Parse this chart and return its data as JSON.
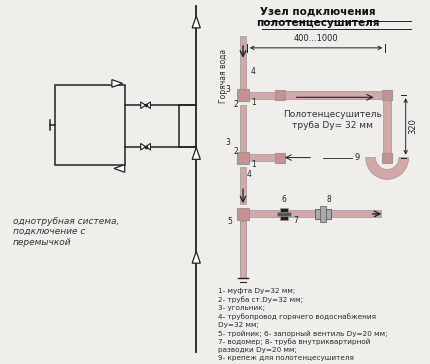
{
  "title": "Узел подключения\nполотенцесушителя",
  "left_label": "однотрубная система,\nподключение с\nперемычкой",
  "legend_lines": [
    "1- муфта Dy=32 мм;",
    "2- труба ст.Dy=32 мм;",
    "3- угольник;",
    "4- трубопровод горячего водоснабжения",
    "Dy=32 мм;",
    "5- тройник; 6- запорный вентиль Dy=20 мм;",
    "7- водомер; 8- труба внутриквартирной",
    "разводки Dy=20 мм;",
    "9- крепеж для полотенцесушителя"
  ],
  "dim_label_width": "400...1000",
  "dim_label_height": "320",
  "towel_label": "Полотенцесушитель\nтруба Dy= 32 мм",
  "hot_water_label": "Горячая вода",
  "bg_color": "#f0eeea",
  "pipe_color": "#d4a8a8",
  "pipe_ec": "#999999",
  "line_color": "#222222",
  "fitting_color": "#c89090"
}
